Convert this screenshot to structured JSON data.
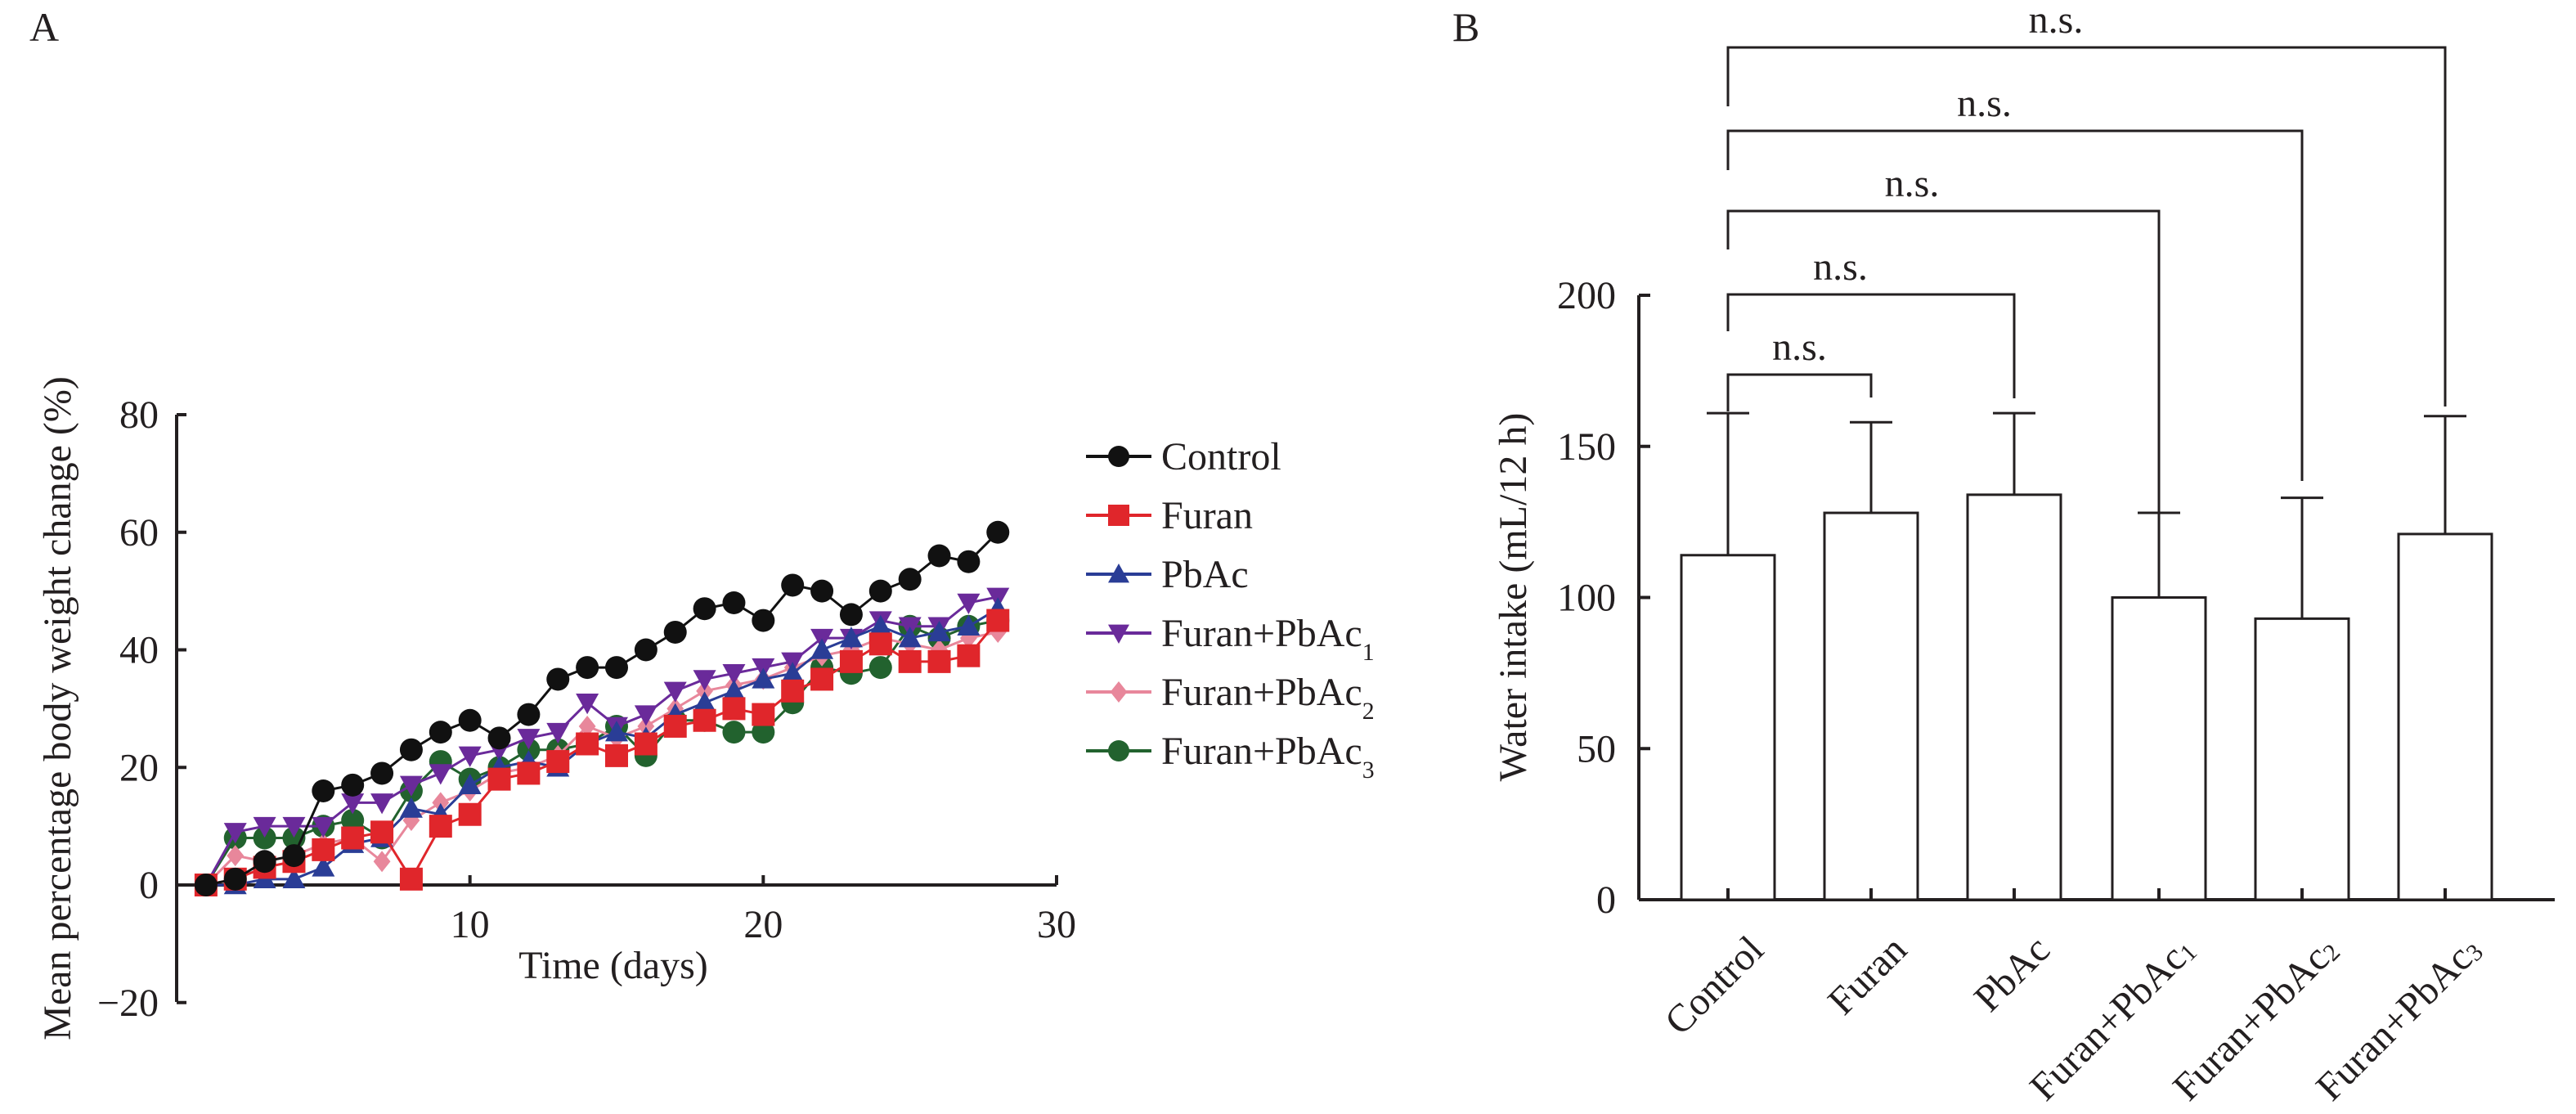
{
  "panels": {
    "a_label": "A",
    "b_label": "B"
  },
  "chart_data": [
    {
      "type": "line",
      "panel": "A",
      "title": "",
      "xlabel": "Time (days)",
      "ylabel": "Mean percentage body weight change (%)",
      "xlim": [
        0,
        30
      ],
      "ylim": [
        -20,
        80
      ],
      "xticks": [
        "10",
        "20",
        "30"
      ],
      "xtick_values": [
        10,
        20,
        30
      ],
      "yticks": [
        "80",
        "60",
        "40",
        "20",
        "0",
        "−20"
      ],
      "ytick_values": [
        80,
        60,
        40,
        20,
        0,
        -20
      ],
      "grid": false,
      "legend_position": "right",
      "x": [
        1,
        2,
        3,
        4,
        5,
        6,
        7,
        8,
        9,
        10,
        11,
        12,
        13,
        14,
        15,
        16,
        17,
        18,
        19,
        20,
        21,
        22,
        23,
        24,
        25,
        26,
        27,
        28
      ],
      "series": [
        {
          "name": "Control",
          "label": "Control",
          "subscript": "",
          "color": "#111111",
          "marker": "circle",
          "values": [
            0,
            1,
            4,
            5,
            16,
            17,
            19,
            23,
            26,
            28,
            25,
            29,
            35,
            37,
            37,
            40,
            43,
            47,
            48,
            45,
            51,
            50,
            46,
            50,
            52,
            56,
            55,
            60
          ]
        },
        {
          "name": "Furan",
          "label": "Furan",
          "subscript": "",
          "color": "#e0262b",
          "marker": "square",
          "values": [
            0,
            1,
            3,
            4,
            6,
            8,
            9,
            1,
            10,
            12,
            18,
            19,
            21,
            24,
            22,
            24,
            27,
            28,
            30,
            29,
            33,
            35,
            38,
            41,
            38,
            38,
            39,
            45
          ]
        },
        {
          "name": "PbAc",
          "label": "PbAc",
          "subscript": "",
          "color": "#2a3d96",
          "marker": "triangle-up",
          "values": [
            0,
            0,
            1,
            1,
            3,
            7,
            8,
            13,
            12,
            17,
            20,
            21,
            20,
            24,
            26,
            25,
            29,
            31,
            33,
            35,
            36,
            40,
            42,
            44,
            42,
            43,
            44,
            47
          ]
        },
        {
          "name": "Furan+PbAc1",
          "label": "Furan+PbAc",
          "subscript": "1",
          "color": "#6a2a9a",
          "marker": "triangle-down",
          "values": [
            0,
            9,
            10,
            10,
            10,
            14,
            14,
            17,
            19,
            22,
            23,
            25,
            26,
            31,
            27,
            29,
            33,
            35,
            36,
            37,
            38,
            42,
            42,
            45,
            44,
            44,
            48,
            49
          ]
        },
        {
          "name": "Furan+PbAc2",
          "label": "Furan+PbAc",
          "subscript": "2",
          "color": "#e8879b",
          "marker": "diamond",
          "values": [
            0,
            5,
            4,
            5,
            7,
            8,
            4,
            11,
            14,
            16,
            19,
            20,
            22,
            27,
            25,
            27,
            30,
            33,
            34,
            35,
            37,
            39,
            40,
            42,
            41,
            40,
            42,
            43
          ]
        },
        {
          "name": "Furan+PbAc3",
          "label": "Furan+PbAc",
          "subscript": "3",
          "color": "#22622e",
          "marker": "circle",
          "values": [
            0,
            8,
            8,
            8,
            10,
            11,
            8,
            16,
            21,
            18,
            20,
            23,
            23,
            24,
            27,
            22,
            28,
            28,
            26,
            26,
            31,
            37,
            36,
            37,
            44,
            42,
            44,
            45
          ]
        }
      ]
    },
    {
      "type": "bar",
      "panel": "B",
      "title": "",
      "xlabel": "",
      "ylabel": "Water intake (mL/12 h)",
      "ylim": [
        0,
        200
      ],
      "yticks": [
        "200",
        "150",
        "100",
        "50",
        "0"
      ],
      "ytick_values": [
        200,
        150,
        100,
        50,
        0
      ],
      "grid": false,
      "categories": [
        "Control",
        "Furan",
        "PbAc",
        "Furan+PbAc1",
        "Furan+PbAc2",
        "Furan+PbAc3"
      ],
      "category_labels": [
        {
          "text": "Control",
          "sub": ""
        },
        {
          "text": "Furan",
          "sub": ""
        },
        {
          "text": "PbAc",
          "sub": ""
        },
        {
          "text": "Furan+PbAc",
          "sub": "1"
        },
        {
          "text": "Furan+PbAc",
          "sub": "2"
        },
        {
          "text": "Furan+PbAc",
          "sub": "3"
        }
      ],
      "values": [
        114,
        128,
        134,
        100,
        93,
        121
      ],
      "error_upper": [
        161,
        158,
        161,
        128,
        133,
        160
      ],
      "annotations": [
        {
          "from": "Control",
          "to": "Furan",
          "text": "n.s.",
          "level": 1
        },
        {
          "from": "Control",
          "to": "PbAc",
          "text": "n.s.",
          "level": 2
        },
        {
          "from": "Control",
          "to": "Furan+PbAc1",
          "text": "n.s.",
          "level": 3
        },
        {
          "from": "Control",
          "to": "Furan+PbAc2",
          "text": "n.s.",
          "level": 4
        },
        {
          "from": "Control",
          "to": "Furan+PbAc3",
          "text": "n.s.",
          "level": 5
        }
      ]
    }
  ]
}
